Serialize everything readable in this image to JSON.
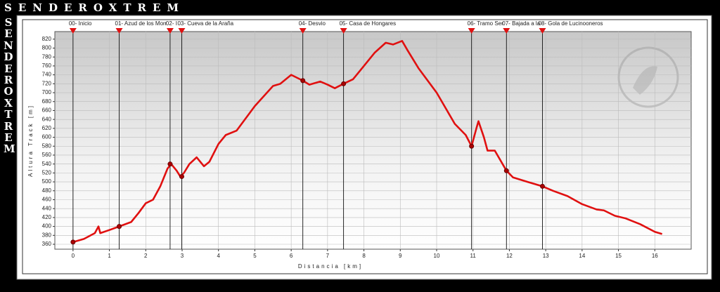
{
  "brand": "SENDEROXTREM",
  "chart_data": {
    "type": "line",
    "x_label": "Distancia [km]",
    "y_label": "Altura Track [m]",
    "xlim": [
      -0.5,
      17
    ],
    "ylim": [
      349,
      837
    ],
    "xticks": [
      0,
      1,
      2,
      3,
      4,
      5,
      6,
      7,
      8,
      9,
      10,
      11,
      12,
      13,
      14,
      15,
      16
    ],
    "yticks": [
      360,
      380,
      400,
      420,
      440,
      460,
      480,
      500,
      520,
      540,
      560,
      580,
      600,
      620,
      640,
      660,
      680,
      700,
      720,
      740,
      760,
      780,
      800,
      820
    ],
    "grid": true,
    "series": [
      {
        "color": "#e01010",
        "x": [
          0,
          0.3,
          0.6,
          0.7,
          0.75,
          1.0,
          1.27,
          1.6,
          1.8,
          2.0,
          2.2,
          2.4,
          2.6,
          2.7,
          2.85,
          2.95,
          3.05,
          3.2,
          3.4,
          3.6,
          3.75,
          4.0,
          4.2,
          4.5,
          5.0,
          5.5,
          5.7,
          6.0,
          6.32,
          6.5,
          6.8,
          7.0,
          7.2,
          7.44,
          7.7,
          8.0,
          8.3,
          8.6,
          8.8,
          9.05,
          9.2,
          9.5,
          10.0,
          10.5,
          10.8,
          10.96,
          11.1,
          11.15,
          11.3,
          11.4,
          11.6,
          11.92,
          12.1,
          12.5,
          12.91,
          13.2,
          13.6,
          14.0,
          14.4,
          14.6,
          14.9,
          15.2,
          15.6,
          16.0,
          16.2
        ],
        "values": [
          365,
          372,
          385,
          400,
          385,
          392,
          400,
          410,
          430,
          452,
          460,
          490,
          530,
          540,
          525,
          512,
          520,
          540,
          555,
          535,
          545,
          585,
          605,
          615,
          670,
          715,
          720,
          740,
          727,
          718,
          725,
          718,
          710,
          720,
          730,
          760,
          790,
          812,
          808,
          816,
          795,
          755,
          700,
          630,
          605,
          580,
          622,
          636,
          600,
          570,
          570,
          525,
          510,
          500,
          490,
          480,
          468,
          450,
          438,
          436,
          424,
          418,
          405,
          388,
          383
        ]
      }
    ],
    "waypoints": {
      "color": "#e01010",
      "labels": [
        "00- Inicio",
        "01- Azud de los Morr",
        "02- I",
        "03- Cueva de la Araña",
        "04- Desvio",
        "05- Casa de Hongares",
        "06- Tramo Ser",
        "07- Bajada a la",
        "08- Gola de Lucinooneros"
      ],
      "x": [
        0,
        1.27,
        2.67,
        2.99,
        6.32,
        7.44,
        10.96,
        11.92,
        12.91
      ],
      "values": [
        365,
        400,
        540,
        512,
        727,
        720,
        580,
        525,
        490
      ]
    }
  }
}
